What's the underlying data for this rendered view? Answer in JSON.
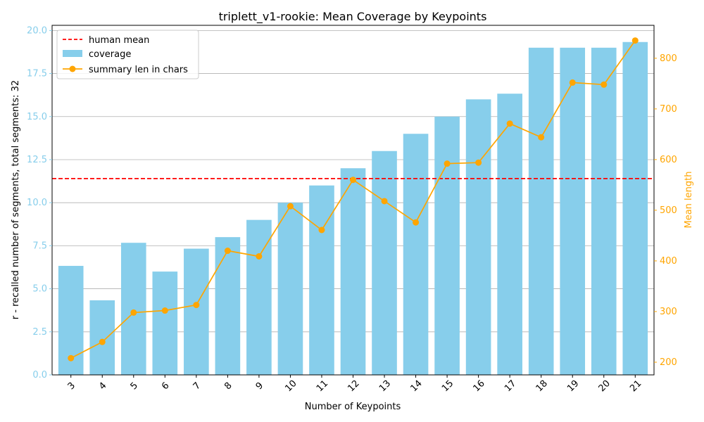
{
  "chart_data": {
    "type": "bar",
    "title": "triplett_v1-rookie: Mean Coverage by Keypoints",
    "xlabel": "Number of Keypoints",
    "ylabel": "r - recalled number of segments, total segments: 32",
    "y2label": "Mean length",
    "categories": [
      "3",
      "4",
      "5",
      "6",
      "7",
      "8",
      "9",
      "10",
      "11",
      "12",
      "13",
      "14",
      "15",
      "16",
      "17",
      "18",
      "19",
      "20",
      "21"
    ],
    "ylim": [
      0,
      20.3
    ],
    "y2lim": [
      175,
      865
    ],
    "yticks": [
      "0.0",
      "2.5",
      "5.0",
      "7.5",
      "10.0",
      "12.5",
      "15.0",
      "17.5",
      "20.0"
    ],
    "y2ticks": [
      "200",
      "300",
      "400",
      "500",
      "600",
      "700",
      "800"
    ],
    "grid": "horizontal",
    "legend_position": "top-left",
    "series": [
      {
        "name": "coverage",
        "type": "bar",
        "axis": "left",
        "color": "#87ceeb",
        "values": [
          6.33,
          4.33,
          7.67,
          6.0,
          7.33,
          8.0,
          9.0,
          10.0,
          11.0,
          12.0,
          13.0,
          14.0,
          15.0,
          16.0,
          16.33,
          19.0,
          19.0,
          19.0,
          19.33
        ]
      },
      {
        "name": "summary len in chars",
        "type": "line",
        "axis": "right",
        "color": "#ffa500",
        "values": [
          208,
          240,
          298,
          302,
          313,
          420,
          409,
          508,
          461,
          560,
          518,
          476,
          592,
          594,
          671,
          644,
          752,
          748,
          835
        ]
      }
    ],
    "reference_lines": [
      {
        "name": "human mean",
        "axis": "left",
        "value": 11.4,
        "color": "#ff0000",
        "style": "dashed"
      }
    ]
  }
}
